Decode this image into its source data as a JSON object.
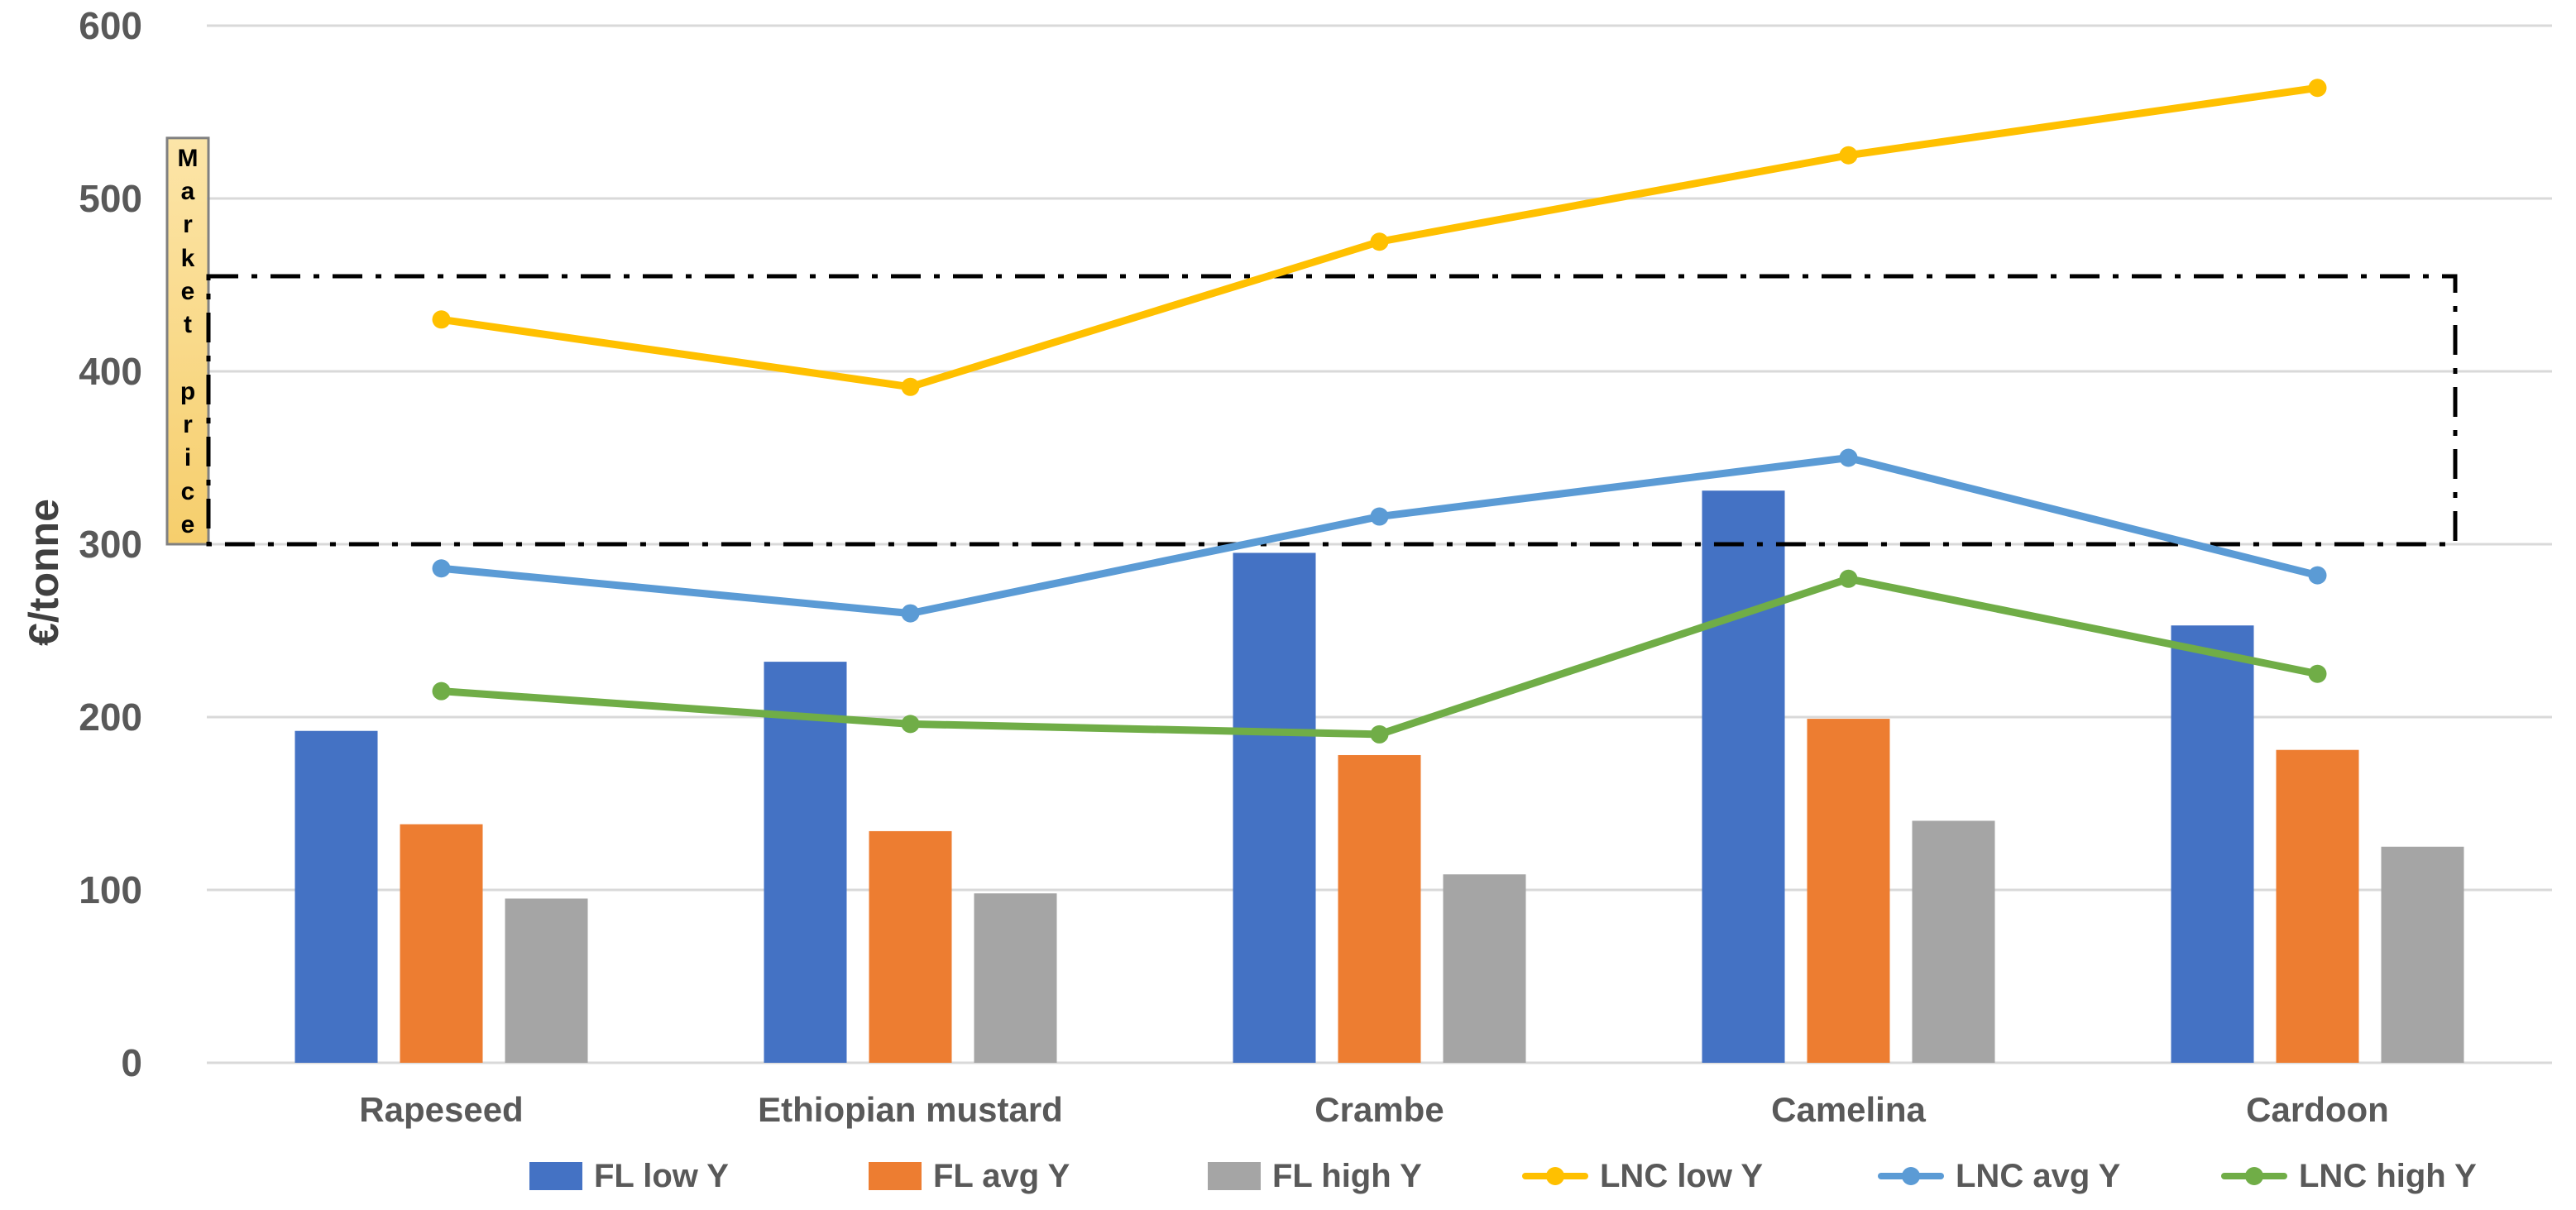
{
  "chart_data": {
    "type": "combo-bar-line",
    "title": "",
    "xlabel": "",
    "ylabel": "€/tonne",
    "ylim": [
      0,
      600
    ],
    "yticks": [
      0,
      100,
      200,
      300,
      400,
      500,
      600
    ],
    "grid": "horizontal",
    "legend_position": "bottom",
    "categories": [
      "Rapeseed",
      "Ethiopian mustard",
      "Crambe",
      "Camelina",
      "Cardoon"
    ],
    "bar_series": [
      {
        "name": "FL low Y",
        "color": "#4472C4",
        "values": [
          192,
          232,
          295,
          331,
          253
        ]
      },
      {
        "name": "FL avg Y",
        "color": "#ED7D31",
        "values": [
          138,
          134,
          178,
          199,
          181
        ]
      },
      {
        "name": "FL high Y",
        "color": "#A5A5A5",
        "values": [
          95,
          98,
          109,
          140,
          125
        ]
      }
    ],
    "line_series": [
      {
        "name": "LNC low Y",
        "color": "#FFC000",
        "values": [
          430,
          391,
          475,
          525,
          564
        ]
      },
      {
        "name": "LNC avg Y",
        "color": "#5B9BD5",
        "values": [
          286,
          260,
          316,
          350,
          282
        ]
      },
      {
        "name": "LNC high Y",
        "color": "#70AD47",
        "values": [
          215,
          196,
          190,
          280,
          225
        ]
      }
    ],
    "market_price_band": {
      "label": "Market price",
      "band_low": 300,
      "band_high": 455,
      "label_box_top": 535,
      "label_box_bottom": 300,
      "band_line_color": "#000000",
      "label_box_fill_top": "#FCE5A8",
      "label_box_fill_bottom": "#F6CE6C",
      "label_box_border": "#808080"
    },
    "colors": {
      "gridline": "#D9D9D9",
      "tick_text": "#595959",
      "axis_title_text": "#404040"
    }
  }
}
